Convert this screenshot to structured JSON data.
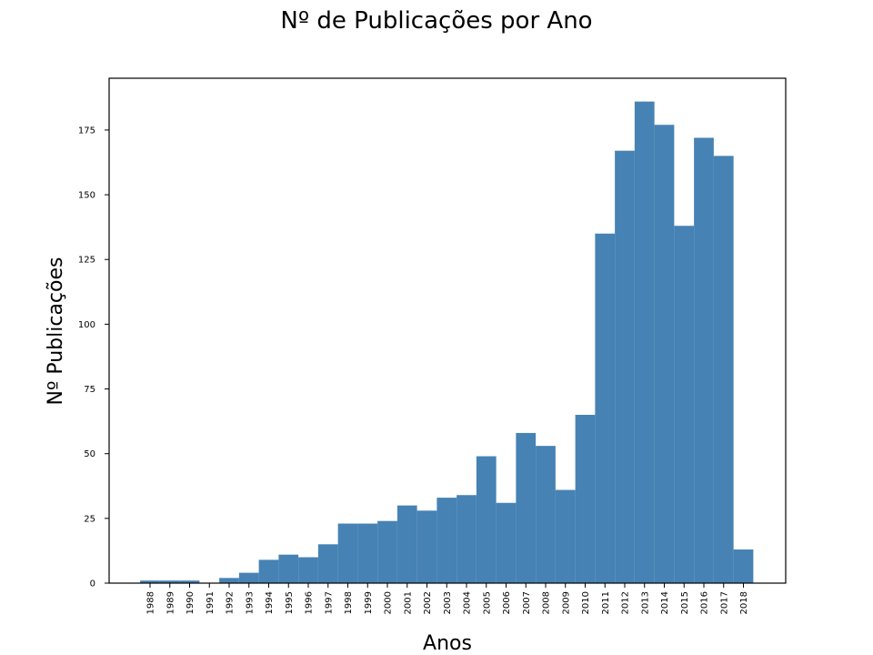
{
  "chart_data": {
    "type": "bar",
    "title": "Nº de Publicações por Ano",
    "xlabel": "Anos",
    "ylabel": "Nº Publicações",
    "categories": [
      "1988",
      "1989",
      "1990",
      "1991",
      "1992",
      "1993",
      "1994",
      "1995",
      "1996",
      "1997",
      "1998",
      "1999",
      "2000",
      "2001",
      "2002",
      "2003",
      "2004",
      "2005",
      "2006",
      "2007",
      "2008",
      "2009",
      "2010",
      "2011",
      "2012",
      "2013",
      "2014",
      "2015",
      "2016",
      "2017",
      "2018"
    ],
    "values": [
      1,
      1,
      1,
      0,
      2,
      4,
      9,
      11,
      10,
      15,
      23,
      23,
      24,
      30,
      28,
      33,
      34,
      49,
      31,
      58,
      53,
      36,
      65,
      135,
      167,
      186,
      177,
      138,
      172,
      165,
      13
    ],
    "ylim": [
      0,
      195
    ],
    "yticks": [
      0,
      25,
      50,
      75,
      100,
      125,
      150,
      175
    ],
    "bar_color": "#4682b4",
    "grid": false
  }
}
